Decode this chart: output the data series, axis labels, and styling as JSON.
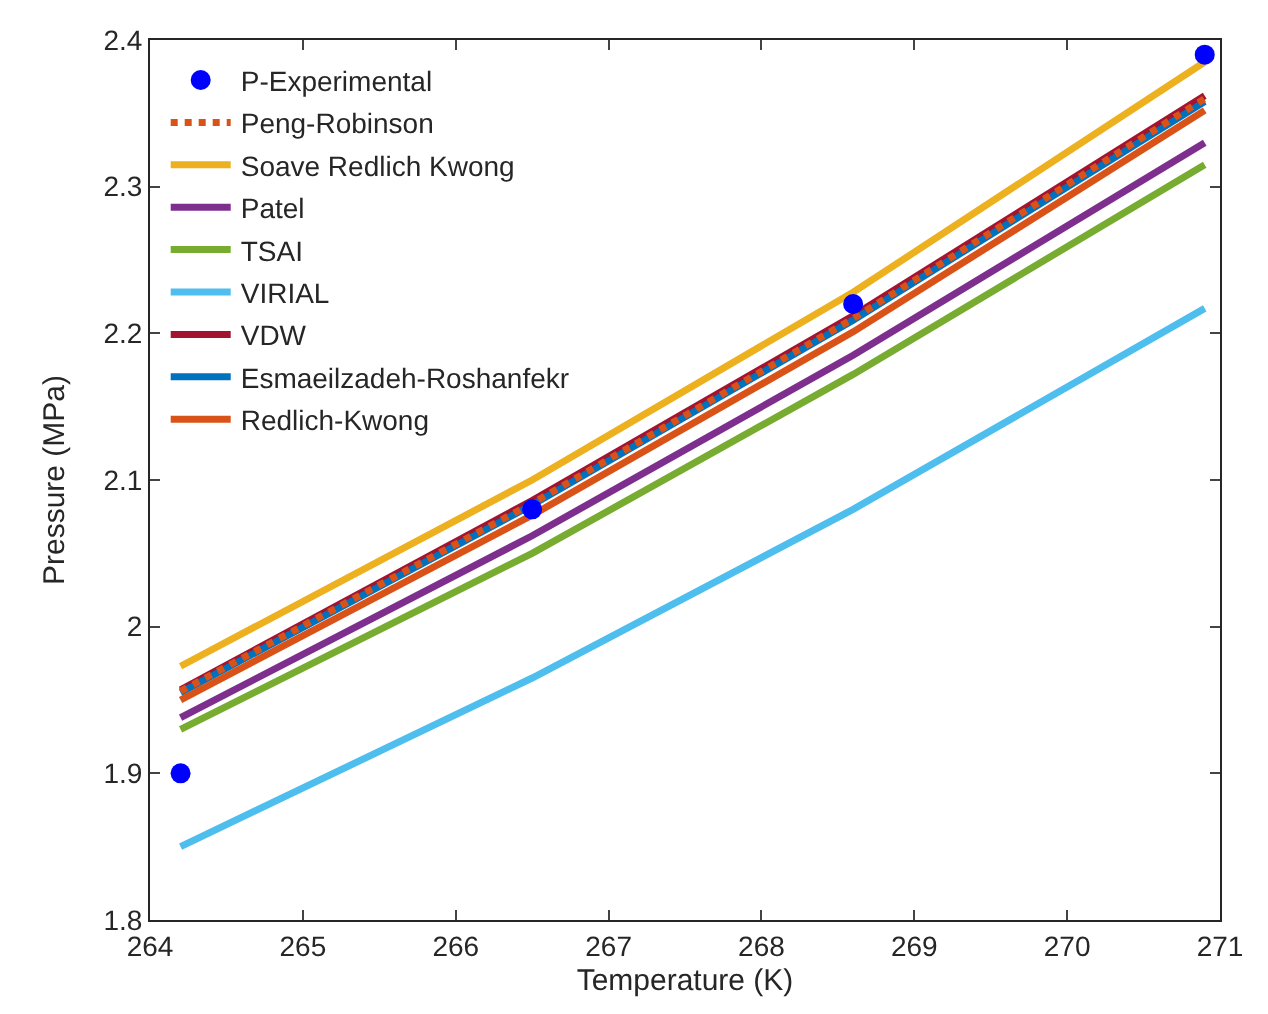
{
  "chart_data": {
    "type": "line",
    "xlabel": "Temperature (K)",
    "ylabel": "Pressure (MPa)",
    "x": [
      264.2,
      266.5,
      268.6,
      270.9
    ],
    "xlim": [
      264,
      271
    ],
    "xticks": [
      264,
      265,
      266,
      267,
      268,
      269,
      270,
      271
    ],
    "ylim": [
      1.8,
      2.4
    ],
    "yticks": [
      1.8,
      1.9,
      2,
      2.1,
      2.2,
      2.3,
      2.4
    ],
    "legend": "top left",
    "series": [
      {
        "name": "P-Experimental",
        "type": "scatter",
        "marker": "circle",
        "color": "#0000ff",
        "values": [
          1.9,
          2.08,
          2.22,
          2.39
        ]
      },
      {
        "name": "Peng-Robinson",
        "color": "#d95319",
        "line_style": "dotted",
        "values": [
          1.956,
          2.084,
          2.21,
          2.36
        ]
      },
      {
        "name": "Soave Redlich Kwong",
        "color": "#edb120",
        "line_style": "solid",
        "values": [
          1.973,
          2.1,
          2.228,
          2.385
        ]
      },
      {
        "name": "Patel",
        "color": "#7e2f8e",
        "line_style": "solid",
        "values": [
          1.938,
          2.062,
          2.185,
          2.33
        ]
      },
      {
        "name": "TSAI",
        "color": "#77ac30",
        "line_style": "solid",
        "values": [
          1.93,
          2.05,
          2.172,
          2.315
        ]
      },
      {
        "name": "VIRIAL",
        "color": "#4dbeee",
        "line_style": "solid",
        "values": [
          1.85,
          1.965,
          2.08,
          2.217
        ]
      },
      {
        "name": "VDW",
        "color": "#a2142f",
        "line_style": "solid",
        "values": [
          1.957,
          2.086,
          2.212,
          2.362
        ]
      },
      {
        "name": "Esmaeilzadeh-Roshanfekr",
        "color": "#0072bd",
        "line_style": "solid",
        "values": [
          1.955,
          2.083,
          2.209,
          2.358
        ]
      },
      {
        "name": "Redlich-Kwong",
        "color": "#d95319",
        "line_style": "solid",
        "values": [
          1.95,
          2.076,
          2.201,
          2.352
        ]
      }
    ]
  }
}
